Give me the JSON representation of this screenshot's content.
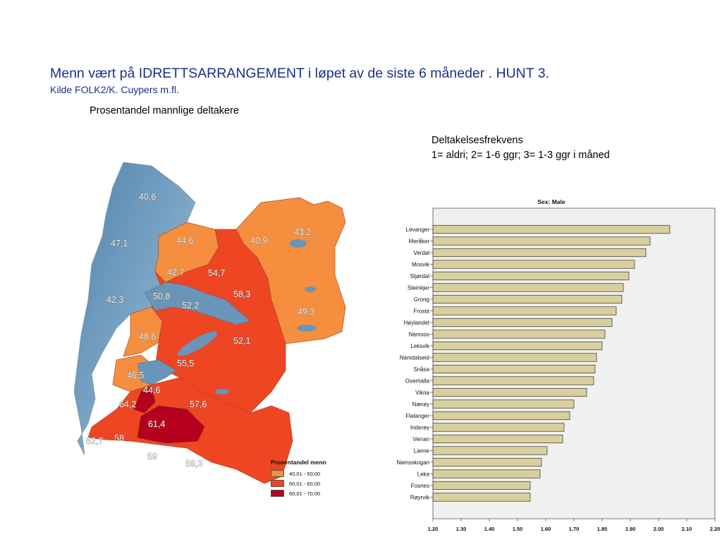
{
  "header": {
    "title": "Menn vært på IDRETTSARRANGEMENT i løpet av de siste 6 måneder . HUNT 3.",
    "subtitle": "Kilde FOLK2/K. Cuypers m.fl."
  },
  "map": {
    "caption": "Prosentandel mannlige deltakere",
    "legend_title": "Prosentandel menn",
    "legend": [
      {
        "label": "40,01 - 50,00",
        "color": "#f58f3f"
      },
      {
        "label": "50,01 - 60,00",
        "color": "#ee4523"
      },
      {
        "label": "60,01 - 70,00",
        "color": "#b5001e"
      }
    ],
    "colors": {
      "sea_dark": "#4f84ad",
      "sea_light": "#bdd6e6",
      "border": "#b04a2a"
    },
    "values": [
      "40,6",
      "43,2",
      "47,1",
      "44,6",
      "40,9",
      "42,7",
      "54,7",
      "50,8",
      "58,3",
      "42,3",
      "52,2",
      "49,3",
      "48,6",
      "52,1",
      "55,5",
      "46,5",
      "44,6",
      "64,2",
      "57,6",
      "61,4",
      "52,7",
      "58",
      "59",
      "59,3"
    ]
  },
  "frequency": {
    "title_line1": "Deltakelsesfrekvens",
    "title_line2": "1= aldri; 2= 1-6 ggr; 3= 1-3 ggr i måned"
  },
  "chart_data": {
    "type": "bar",
    "orientation": "horizontal",
    "title": "Sex: Male",
    "categories": [
      "Levanger",
      "Meråker",
      "Verdal",
      "Mosvik",
      "Stjørdal",
      "Steinkjer",
      "Grong",
      "Frosta",
      "Høylandet",
      "Namsos",
      "Leksvik",
      "Namdalseid",
      "Snåsa",
      "Overhalla",
      "Vikna",
      "Nærøy",
      "Flatanger",
      "Inderøy",
      "Verran",
      "Lierne",
      "Namsskogan",
      "Leka",
      "Fosnes",
      "Røyrvik"
    ],
    "values": [
      2.04,
      1.97,
      1.955,
      1.915,
      1.895,
      1.875,
      1.87,
      1.85,
      1.835,
      1.81,
      1.8,
      1.78,
      1.775,
      1.77,
      1.745,
      1.7,
      1.685,
      1.665,
      1.66,
      1.605,
      1.585,
      1.58,
      1.545,
      1.545
    ],
    "xlim": [
      1.2,
      2.2
    ],
    "xticks": [
      "1.20",
      "1.30",
      "1.40",
      "1.50",
      "1.60",
      "1.70",
      "1.80",
      "1.90",
      "2.00",
      "2.10",
      "2.20"
    ],
    "colors": {
      "bar": "#d8cf9c",
      "plot_bg": "#f0f0f0"
    }
  }
}
